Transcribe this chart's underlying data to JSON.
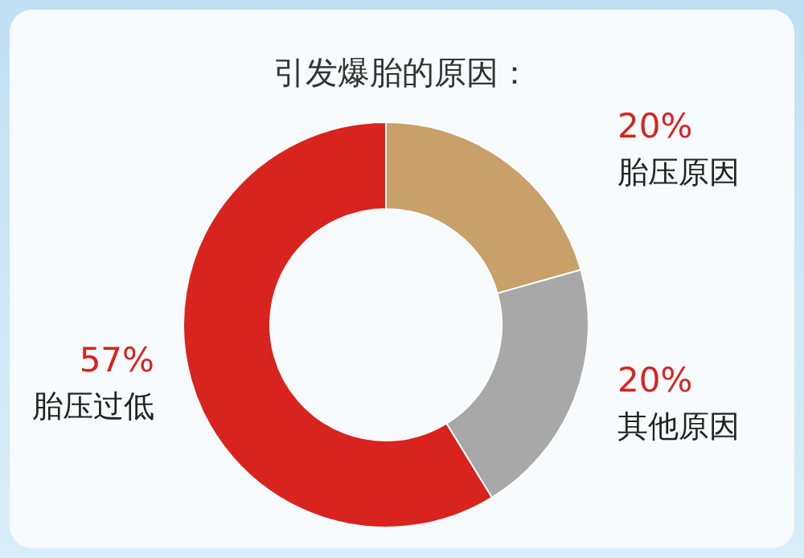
{
  "chart_data": {
    "type": "donut",
    "title": "引发爆胎的原因：",
    "categories": [
      "胎压原因",
      "其他原因",
      "胎压过低"
    ],
    "values": [
      20,
      20,
      57
    ],
    "colors": [
      "#c9a06a",
      "#a8a8a8",
      "#d9231f"
    ],
    "value_labels": [
      "20%",
      "20%",
      "57%"
    ]
  }
}
